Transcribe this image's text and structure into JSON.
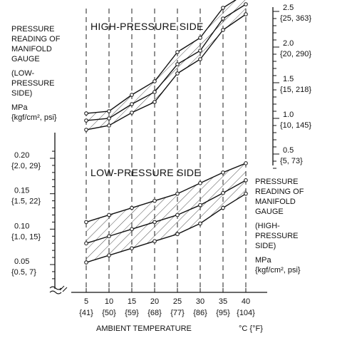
{
  "chart_data": [
    {
      "type": "line",
      "title": "HIGH-PRESSURE SIDE",
      "x": [
        5,
        10,
        15,
        20,
        25,
        30,
        35,
        40
      ],
      "x_tick_labels": [
        "5",
        "10",
        "15",
        "20",
        "25",
        "30",
        "35",
        "40"
      ],
      "x_tick_sublabels": [
        "{41}",
        "{50}",
        "{59}",
        "{68}",
        "{77}",
        "{86}",
        "{95}",
        "{104}"
      ],
      "xlabel": "AMBIENT TEMPERATURE",
      "xunit": "°C {°F}",
      "ylabel_lines": [
        "PRESSURE",
        "READING OF",
        "MANIFOLD",
        "GAUGE",
        "(HIGH-",
        "PRESSURE",
        "SIDE)",
        "MPa",
        "{kgf/cm², psi}"
      ],
      "yticks": [
        {
          "value": 0.5,
          "label": "0.5",
          "sublabel": "{5, 73}"
        },
        {
          "value": 1.0,
          "label": "1.0",
          "sublabel": "{10, 145}"
        },
        {
          "value": 1.5,
          "label": "1.5",
          "sublabel": "{15, 218}"
        },
        {
          "value": 2.0,
          "label": "2.0",
          "sublabel": "{20, 290}"
        },
        {
          "value": 2.5,
          "label": "2.5",
          "sublabel": "{25, 363}"
        }
      ],
      "ylim": [
        0.3,
        2.55
      ],
      "series": [
        {
          "role": "upper",
          "values": [
            1.07,
            1.1,
            1.33,
            1.52,
            1.93,
            2.13,
            2.55,
            2.75
          ]
        },
        {
          "role": "middle",
          "values": [
            0.97,
            1.0,
            1.2,
            1.37,
            1.76,
            1.95,
            2.4,
            2.6
          ]
        },
        {
          "role": "lower",
          "values": [
            0.84,
            0.9,
            1.08,
            1.23,
            1.63,
            1.83,
            2.24,
            2.46
          ]
        }
      ],
      "band_hatched": true
    },
    {
      "type": "line",
      "title": "LOW-PRESSURE SIDE",
      "x": [
        5,
        10,
        15,
        20,
        25,
        30,
        35,
        40
      ],
      "ylabel_lines": [
        "PRESSURE",
        "READING OF",
        "MANIFOLD",
        "GAUGE",
        "(LOW-",
        "PRESSURE",
        "SIDE)",
        "MPa",
        "{kgf/cm², psi}"
      ],
      "yticks": [
        {
          "value": 0.05,
          "label": "0.05",
          "sublabel": "{0.5, 7}"
        },
        {
          "value": 0.1,
          "label": "0.10",
          "sublabel": "{1.0, 15}"
        },
        {
          "value": 0.15,
          "label": "0.15",
          "sublabel": "{1.5, 22}"
        },
        {
          "value": 0.2,
          "label": "0.20",
          "sublabel": "{2.0, 29}"
        }
      ],
      "ylim": [
        0.0,
        0.2
      ],
      "series": [
        {
          "role": "upper",
          "values": [
            0.11,
            0.12,
            0.13,
            0.14,
            0.15,
            0.165,
            0.18,
            0.193
          ]
        },
        {
          "role": "middle",
          "values": [
            0.08,
            0.09,
            0.1,
            0.11,
            0.12,
            0.134,
            0.151,
            0.169
          ]
        },
        {
          "role": "lower",
          "values": [
            0.053,
            0.063,
            0.073,
            0.083,
            0.093,
            0.108,
            0.13,
            0.15
          ]
        }
      ],
      "band_hatched": true
    }
  ]
}
